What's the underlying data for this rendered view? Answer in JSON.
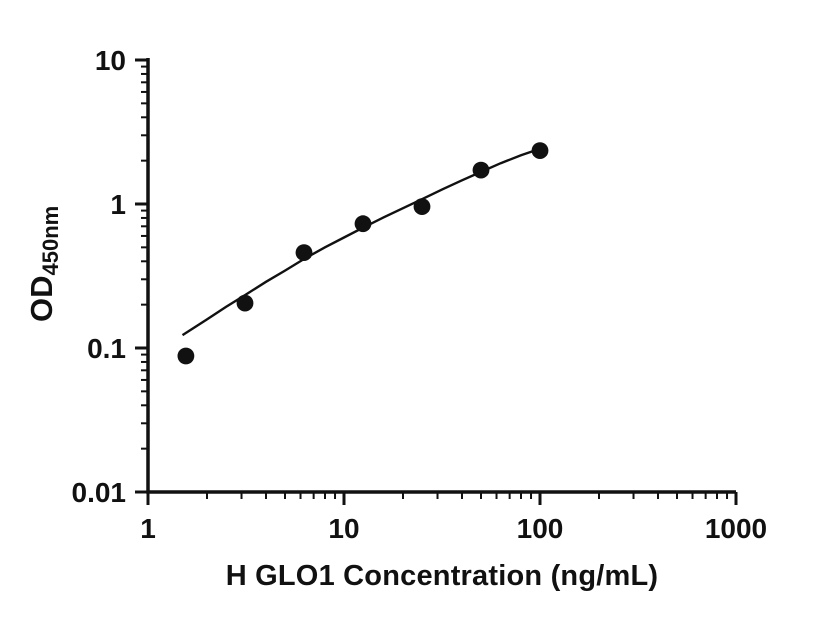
{
  "figure": {
    "xlabel": "H GLO1 Concentration (ng/mL)",
    "ylabel_main": "OD",
    "ylabel_sub": "450nm"
  },
  "chart_data": {
    "type": "scatter",
    "title": "",
    "xlabel": "H GLO1 Concentration (ng/mL)",
    "ylabel": "OD450nm",
    "x_scale": "log10",
    "y_scale": "log10",
    "xlim": [
      1,
      1000
    ],
    "ylim": [
      0.01,
      10
    ],
    "x_ticks": [
      1,
      10,
      100,
      1000
    ],
    "y_ticks": [
      0.01,
      0.1,
      1,
      10
    ],
    "x_tick_labels": [
      "1",
      "10",
      "100",
      "1000"
    ],
    "y_tick_labels": [
      "0.01",
      "0.1",
      "1",
      "10"
    ],
    "grid": false,
    "legend": "none",
    "marker_color": "#111111",
    "line_color": "#111111",
    "series": [
      {
        "name": "fitted-standard-curve",
        "type": "line",
        "points": [
          [
            1.5,
            0.123
          ],
          [
            2,
            0.158
          ],
          [
            2.5,
            0.193
          ],
          [
            3.125,
            0.233
          ],
          [
            4,
            0.288
          ],
          [
            5,
            0.345
          ],
          [
            6.25,
            0.415
          ],
          [
            8,
            0.5
          ],
          [
            10,
            0.585
          ],
          [
            12.5,
            0.685
          ],
          [
            16,
            0.81
          ],
          [
            20,
            0.935
          ],
          [
            25,
            1.08
          ],
          [
            32,
            1.27
          ],
          [
            40,
            1.46
          ],
          [
            50,
            1.67
          ],
          [
            63,
            1.92
          ],
          [
            80,
            2.18
          ],
          [
            100,
            2.42
          ]
        ]
      },
      {
        "name": "standard-points",
        "type": "scatter",
        "points": [
          [
            1.56,
            0.088
          ],
          [
            3.125,
            0.205
          ],
          [
            6.25,
            0.46
          ],
          [
            12.5,
            0.73
          ],
          [
            25,
            0.96
          ],
          [
            50,
            1.72
          ],
          [
            100,
            2.35
          ]
        ]
      }
    ]
  }
}
